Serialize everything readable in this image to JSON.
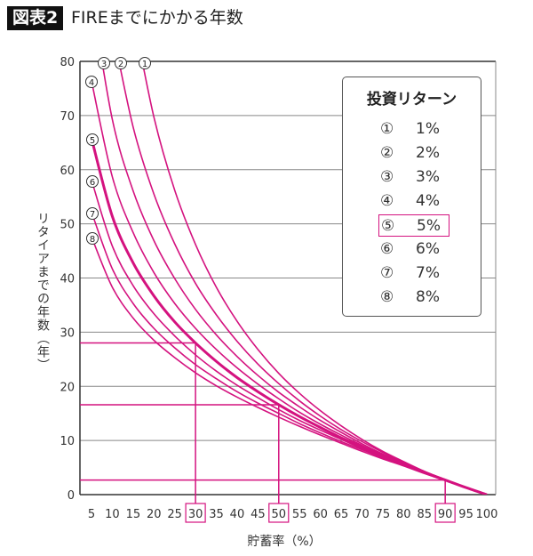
{
  "header": {
    "badge": "図表2",
    "title": "FIREまでにかかる年数"
  },
  "legend": {
    "title": "投資リターン",
    "items": [
      {
        "marker": "①",
        "label": "1%"
      },
      {
        "marker": "②",
        "label": "2%"
      },
      {
        "marker": "③",
        "label": "3%"
      },
      {
        "marker": "④",
        "label": "4%"
      },
      {
        "marker": "⑤",
        "label": "5%",
        "highlight": true
      },
      {
        "marker": "⑥",
        "label": "6%"
      },
      {
        "marker": "⑦",
        "label": "7%"
      },
      {
        "marker": "⑧",
        "label": "8%"
      }
    ]
  },
  "chart_data": {
    "type": "line",
    "xlabel": "貯蓄率（%）",
    "ylabel": "リタイアまでの年数（年）",
    "xlim": [
      5,
      100
    ],
    "ylim": [
      0,
      80
    ],
    "x_ticks": [
      5,
      10,
      15,
      20,
      25,
      30,
      35,
      40,
      45,
      50,
      55,
      60,
      65,
      70,
      75,
      80,
      85,
      90,
      95,
      100
    ],
    "highlighted_x_ticks": [
      30,
      50,
      90
    ],
    "y_ticks": [
      0,
      10,
      20,
      30,
      40,
      50,
      60,
      70,
      80
    ],
    "grid": "horizontal",
    "line_color": "#d4127f",
    "x": [
      5,
      10,
      15,
      20,
      25,
      30,
      35,
      40,
      45,
      50,
      55,
      60,
      65,
      70,
      75,
      80,
      85,
      90,
      95,
      100
    ],
    "series": [
      {
        "name": "①",
        "values": [
          null,
          null,
          88.7,
          69.7,
          56.2,
          46.2,
          38.3,
          32.0,
          26.8,
          22.4,
          18.7,
          15.5,
          12.7,
          10.2,
          8.0,
          6.1,
          4.3,
          2.8,
          1.3,
          0
        ]
      },
      {
        "name": "②",
        "values": [
          null,
          86.1,
          67.9,
          55.5,
          46.3,
          39.0,
          33.2,
          28.3,
          24.1,
          20.5,
          17.3,
          14.5,
          12.0,
          9.8,
          7.8,
          5.9,
          4.3,
          2.7,
          1.3,
          0
        ]
      },
      {
        "name": "③",
        "values": [
          92.2,
          69.3,
          56.1,
          46.9,
          39.9,
          34.2,
          29.5,
          25.5,
          22.0,
          18.9,
          16.2,
          13.7,
          11.5,
          9.4,
          7.5,
          5.8,
          4.2,
          2.7,
          1.3,
          0
        ]
      },
      {
        "name": "④",
        "values": [
          76.4,
          58.7,
          48.4,
          41.0,
          35.3,
          30.7,
          26.8,
          23.4,
          20.4,
          17.7,
          15.2,
          13.0,
          11.0,
          9.1,
          7.3,
          5.7,
          4.1,
          2.7,
          1.3,
          0
        ]
      },
      {
        "name": "⑤",
        "values": [
          65.8,
          51.4,
          42.8,
          36.7,
          31.9,
          28.0,
          24.6,
          21.6,
          19.0,
          16.6,
          14.4,
          12.4,
          10.5,
          8.8,
          7.1,
          5.6,
          4.1,
          2.7,
          1.3,
          0
        ],
        "highlight": true
      },
      {
        "name": "⑥",
        "values": [
          58.1,
          45.9,
          38.6,
          33.4,
          29.3,
          25.8,
          22.8,
          20.2,
          17.9,
          15.7,
          13.7,
          11.9,
          10.2,
          8.5,
          7.0,
          5.5,
          4.0,
          2.6,
          1.3,
          0
        ]
      },
      {
        "name": "⑦",
        "values": [
          52.2,
          41.7,
          35.3,
          30.7,
          27.1,
          24.0,
          21.4,
          19.0,
          16.9,
          15.0,
          13.1,
          11.4,
          9.8,
          8.3,
          6.8,
          5.4,
          4.0,
          2.6,
          1.3,
          0
        ]
      },
      {
        "name": "⑧",
        "values": [
          47.6,
          38.3,
          32.6,
          28.5,
          25.3,
          22.5,
          20.1,
          18.0,
          16.1,
          14.3,
          12.6,
          11.0,
          9.5,
          8.0,
          6.6,
          5.3,
          3.9,
          2.6,
          1.3,
          0
        ]
      }
    ],
    "reference_points": [
      {
        "x": 30,
        "y": 28.0
      },
      {
        "x": 50,
        "y": 16.6
      },
      {
        "x": 90,
        "y": 2.7
      }
    ]
  }
}
